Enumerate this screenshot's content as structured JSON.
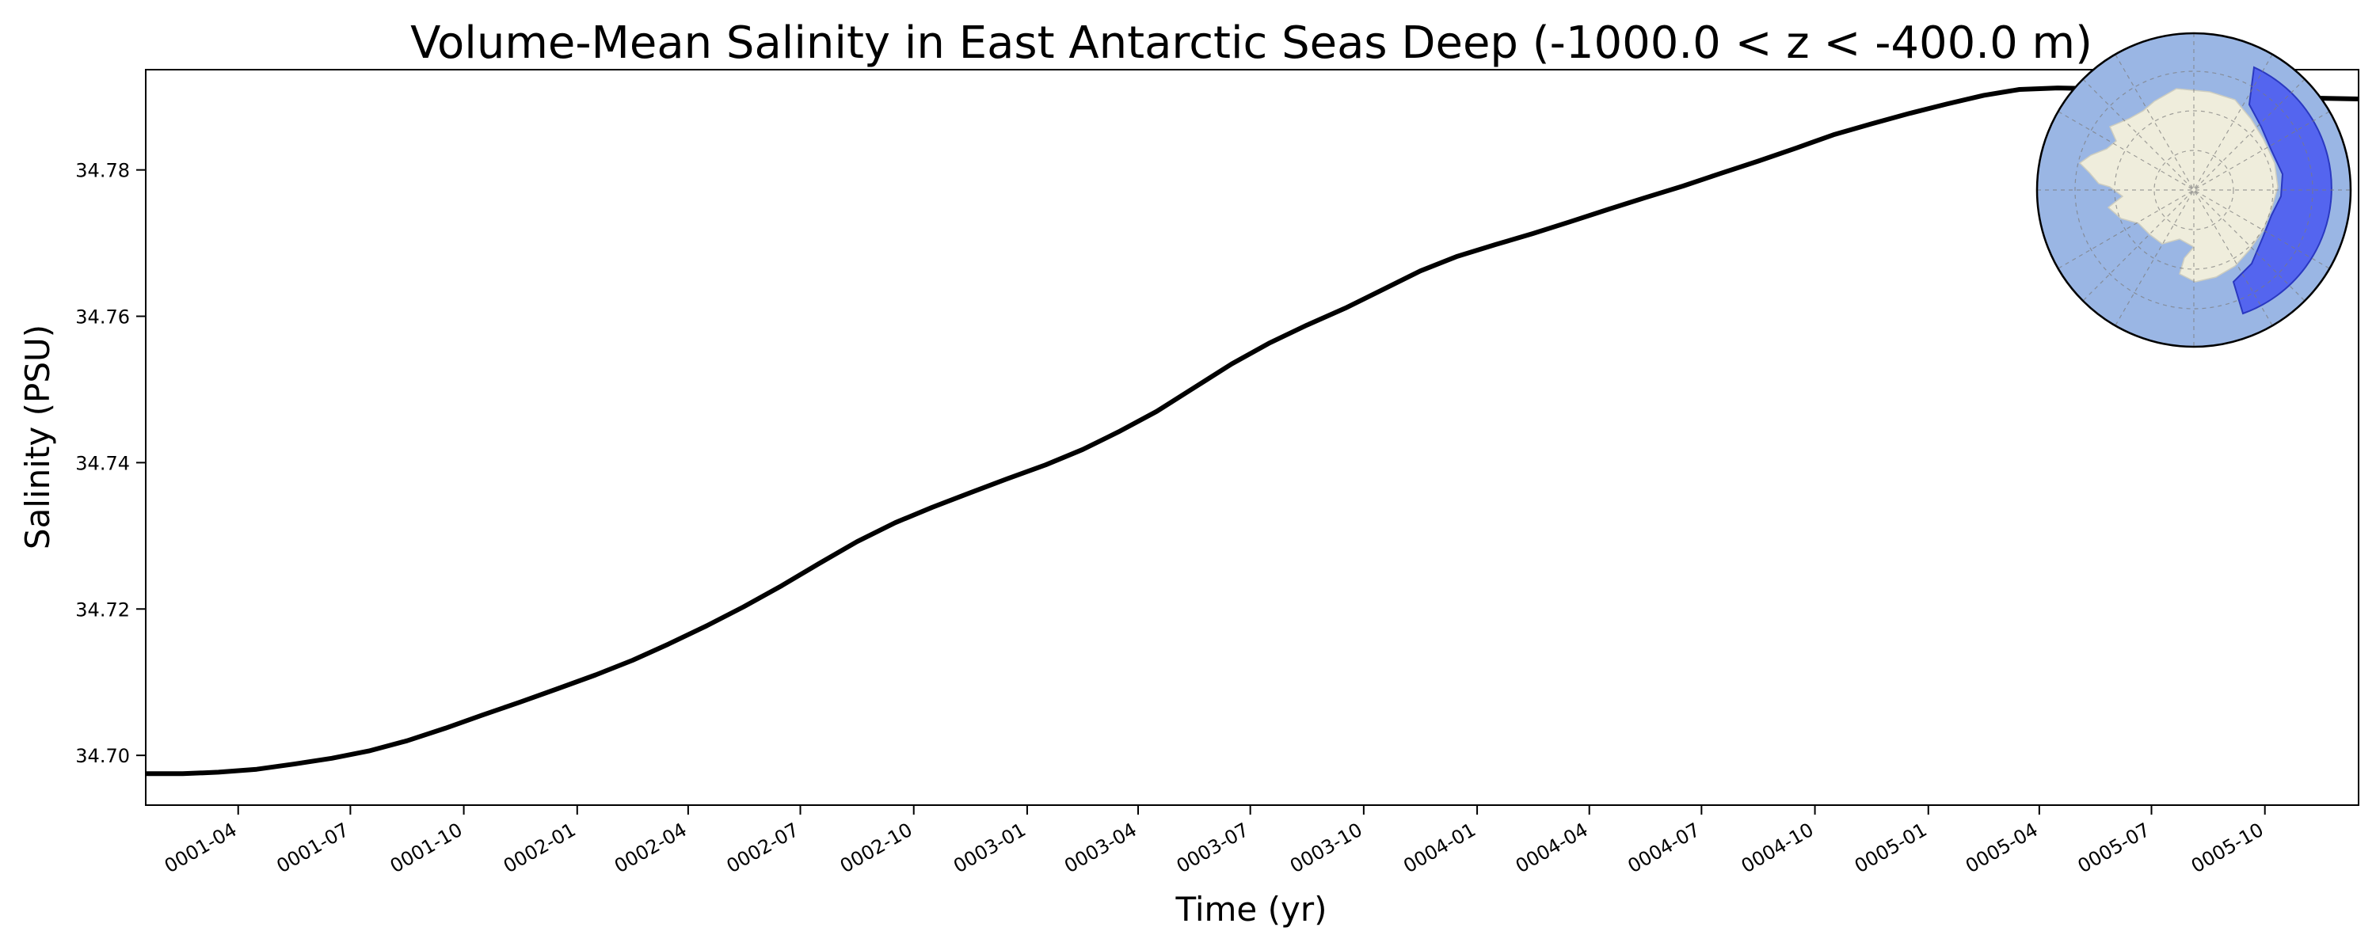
{
  "chart_data": {
    "type": "line",
    "title": "Volume-Mean Salinity in East Antarctic Seas Deep (-1000.0 < z < -400.0 m)",
    "xlabel": "Time (yr)",
    "ylabel": "Salinity (PSU)",
    "x_tick_labels": [
      "0001-04",
      "0001-07",
      "0001-10",
      "0002-01",
      "0002-04",
      "0002-07",
      "0002-10",
      "0003-01",
      "0003-04",
      "0003-07",
      "0003-10",
      "0004-01",
      "0004-04",
      "0004-07",
      "0004-10",
      "0005-01",
      "0005-04",
      "0005-07",
      "0005-10"
    ],
    "y_tick_labels": [
      "34.70",
      "34.72",
      "34.74",
      "34.76",
      "34.78"
    ],
    "y_ticks": [
      34.7,
      34.72,
      34.74,
      34.76,
      34.78
    ],
    "xlim": [
      "0001-01-16",
      "0005-12-16"
    ],
    "ylim": [
      34.6932,
      34.7937
    ],
    "grid": false,
    "inset": "Antarctic polar map with East Antarctic region shaded",
    "colors": {
      "line": "#000000",
      "ocean": "#9ab6e4",
      "land": "#efeddc",
      "land_outline": "#c8c8c8",
      "region": "#4a5af0"
    },
    "series": [
      {
        "name": "",
        "x": [
          "0001-01-16",
          "0001-02-15",
          "0001-03-16",
          "0001-04-16",
          "0001-05-16",
          "0001-06-16",
          "0001-07-16",
          "0001-08-16",
          "0001-09-16",
          "0001-10-16",
          "0001-11-16",
          "0001-12-16",
          "0002-01-16",
          "0002-02-15",
          "0002-03-16",
          "0002-04-16",
          "0002-05-16",
          "0002-06-16",
          "0002-07-16",
          "0002-08-16",
          "0002-09-16",
          "0002-10-16",
          "0002-11-16",
          "0002-12-16",
          "0003-01-16",
          "0003-02-15",
          "0003-03-16",
          "0003-04-16",
          "0003-05-16",
          "0003-06-16",
          "0003-07-16",
          "0003-08-16",
          "0003-09-16",
          "0003-10-16",
          "0003-11-16",
          "0003-12-16",
          "0004-01-16",
          "0004-02-15",
          "0004-03-16",
          "0004-04-16",
          "0004-05-16",
          "0004-06-16",
          "0004-07-16",
          "0004-08-16",
          "0004-09-16",
          "0004-10-16",
          "0004-11-16",
          "0004-12-16",
          "0005-01-16",
          "0005-02-15",
          "0005-03-16",
          "0005-04-16",
          "0005-05-16",
          "0005-06-16",
          "0005-07-16",
          "0005-08-16",
          "0005-09-16",
          "0005-10-16",
          "0005-11-16",
          "0005-12-16"
        ],
        "values": [
          34.6975,
          34.6975,
          34.6977,
          34.6981,
          34.6988,
          34.6996,
          34.7006,
          34.702,
          34.7037,
          34.7055,
          34.7073,
          34.7091,
          34.711,
          34.713,
          34.7152,
          34.7177,
          34.7203,
          34.7232,
          34.7262,
          34.7292,
          34.7318,
          34.7339,
          34.7359,
          34.7378,
          34.7397,
          34.7418,
          34.7442,
          34.747,
          34.7502,
          34.7535,
          34.7563,
          34.7588,
          34.7611,
          34.7636,
          34.7662,
          34.7682,
          34.7698,
          34.7713,
          34.7729,
          34.7746,
          34.7762,
          34.7778,
          34.7795,
          34.7812,
          34.783,
          34.7848,
          34.7863,
          34.7877,
          34.789,
          34.7902,
          34.791,
          34.7912,
          34.7911,
          34.7908,
          34.7905,
          34.7903,
          34.7902,
          34.79,
          34.7898,
          34.7897
        ]
      }
    ]
  }
}
